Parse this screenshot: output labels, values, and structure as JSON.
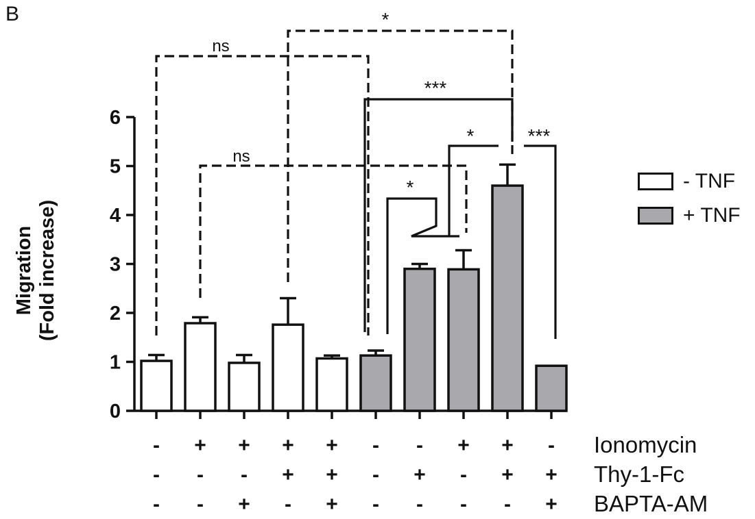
{
  "panel_label": "B",
  "chart_data": {
    "type": "bar",
    "ylabel_lines": [
      "Migration",
      "(Fold increase)"
    ],
    "ylim": [
      0,
      6
    ],
    "yticks": [
      0,
      1,
      2,
      3,
      4,
      5,
      6
    ],
    "bars": [
      {
        "value": 1.02,
        "error": 0.12,
        "group": "- TNF"
      },
      {
        "value": 1.79,
        "error": 0.12,
        "group": "- TNF"
      },
      {
        "value": 0.98,
        "error": 0.16,
        "group": "- TNF"
      },
      {
        "value": 1.76,
        "error": 0.54,
        "group": "- TNF"
      },
      {
        "value": 1.07,
        "error": 0.06,
        "group": "- TNF"
      },
      {
        "value": 1.13,
        "error": 0.1,
        "group": "+ TNF"
      },
      {
        "value": 2.9,
        "error": 0.1,
        "group": "+ TNF"
      },
      {
        "value": 2.89,
        "error": 0.39,
        "group": "+ TNF"
      },
      {
        "value": 4.6,
        "error": 0.43,
        "group": "+ TNF"
      },
      {
        "value": 0.92,
        "error": 0.0,
        "group": "+ TNF"
      }
    ],
    "legend": [
      {
        "label": "- TNF",
        "color": "#ffffff"
      },
      {
        "label": "+ TNF",
        "color": "#a9a9ad"
      }
    ],
    "treatments": [
      {
        "label": "Ionomycin",
        "signs": [
          "-",
          "+",
          "+",
          "+",
          "+",
          "-",
          "-",
          "+",
          "+",
          "-"
        ]
      },
      {
        "label": "Thy-1-Fc",
        "signs": [
          "-",
          "-",
          "-",
          "+",
          "+",
          "-",
          "+",
          "-",
          "+",
          "+"
        ]
      },
      {
        "label": "BAPTA-AM",
        "signs": [
          "-",
          "-",
          "+",
          "-",
          "+",
          "-",
          "-",
          "-",
          "-",
          "+"
        ]
      }
    ],
    "significance": [
      {
        "label": "ns",
        "from": 1,
        "to": 6,
        "style": "dashed"
      },
      {
        "label": "ns",
        "from": 2,
        "to": 8,
        "style": "dashed"
      },
      {
        "label": "*",
        "from": 4,
        "to": 9,
        "style": "dashed"
      },
      {
        "label": "***",
        "from": 6,
        "to": 9,
        "style": "solid"
      },
      {
        "label": "*",
        "from": 6,
        "to": 8,
        "style": "solid"
      },
      {
        "label": "*",
        "from": 8,
        "to": 9,
        "style": "solid"
      },
      {
        "label": "***",
        "from": 9,
        "to": 10,
        "style": "solid"
      }
    ],
    "colors": {
      "minus_tnf": "#ffffff",
      "plus_tnf": "#a9a9ad",
      "stroke": "#111111"
    }
  }
}
